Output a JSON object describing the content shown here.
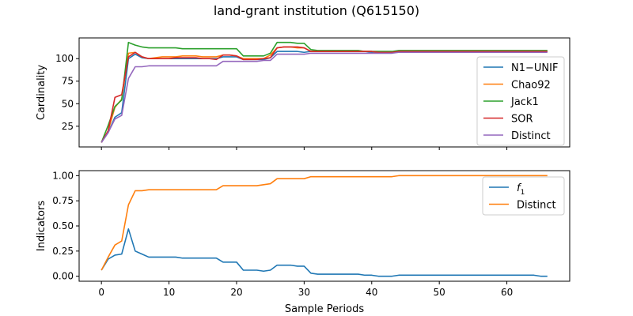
{
  "figure": {
    "title": "land-grant institution (Q615150)"
  },
  "chart_data": [
    {
      "type": "line",
      "ylabel": "Cardinality",
      "xlabel": "",
      "xlim": [
        -3.3,
        69.3
      ],
      "ylim": [
        2,
        123
      ],
      "xticks": [
        0,
        10,
        20,
        30,
        40,
        50,
        60
      ],
      "yticks": [
        25,
        50,
        75,
        100
      ],
      "show_x_ticklabels": false,
      "legend_position": "center right",
      "x": [
        0,
        1,
        2,
        3,
        4,
        5,
        6,
        7,
        8,
        9,
        10,
        11,
        12,
        13,
        14,
        15,
        16,
        17,
        18,
        19,
        20,
        21,
        22,
        23,
        24,
        25,
        26,
        27,
        28,
        29,
        30,
        31,
        32,
        33,
        34,
        35,
        36,
        37,
        38,
        39,
        40,
        41,
        42,
        43,
        44,
        45,
        46,
        47,
        48,
        49,
        50,
        51,
        52,
        53,
        54,
        55,
        56,
        57,
        58,
        59,
        60,
        61,
        62,
        63,
        64,
        65,
        66
      ],
      "series": [
        {
          "name": "N1−UNIF",
          "color": "#1f77b4",
          "values": [
            7,
            18,
            35,
            40,
            100,
            105,
            101,
            100,
            100,
            100,
            100,
            100,
            100,
            100,
            100,
            100,
            100,
            100,
            102,
            102,
            102,
            99,
            99,
            99,
            99,
            101,
            108,
            108,
            108,
            108,
            107,
            108,
            108,
            108,
            108,
            108,
            108,
            108,
            108,
            108,
            107,
            107,
            107,
            107,
            108,
            108,
            108,
            108,
            108,
            108,
            108,
            108,
            108,
            108,
            108,
            108,
            108,
            108,
            108,
            108,
            108,
            108,
            108,
            108,
            108,
            108,
            108
          ]
        },
        {
          "name": "Chao92",
          "color": "#ff7f0e",
          "values": [
            7,
            20,
            46,
            55,
            106,
            107,
            102,
            100,
            101,
            102,
            102,
            102,
            103,
            103,
            103,
            102,
            102,
            102,
            104,
            104,
            103,
            100,
            100,
            100,
            100,
            104,
            112,
            113,
            113,
            112,
            112,
            108,
            108,
            108,
            108,
            108,
            108,
            108,
            108,
            108,
            108,
            107,
            107,
            107,
            108,
            108,
            108,
            108,
            108,
            108,
            108,
            108,
            108,
            108,
            108,
            108,
            108,
            108,
            108,
            108,
            108,
            108,
            108,
            108,
            108,
            108,
            108
          ]
        },
        {
          "name": "Jack1",
          "color": "#2ca02c",
          "values": [
            7,
            26,
            47,
            54,
            118,
            115,
            113,
            112,
            112,
            112,
            112,
            112,
            111,
            111,
            111,
            111,
            111,
            111,
            111,
            111,
            111,
            103,
            103,
            103,
            103,
            106,
            118,
            118,
            118,
            117,
            117,
            110,
            109,
            109,
            109,
            109,
            109,
            109,
            109,
            108,
            108,
            108,
            108,
            108,
            109,
            109,
            109,
            109,
            109,
            109,
            109,
            109,
            109,
            109,
            109,
            109,
            109,
            109,
            109,
            109,
            109,
            109,
            109,
            109,
            109,
            109,
            109
          ]
        },
        {
          "name": "SOR",
          "color": "#d62728",
          "values": [
            7,
            20,
            57,
            60,
            102,
            107,
            102,
            100,
            100,
            100,
            100,
            101,
            101,
            101,
            101,
            100,
            100,
            99,
            104,
            104,
            103,
            99,
            99,
            99,
            100,
            101,
            112,
            113,
            113,
            113,
            112,
            108,
            108,
            108,
            108,
            108,
            108,
            108,
            108,
            108,
            108,
            107,
            107,
            107,
            108,
            108,
            108,
            108,
            108,
            108,
            108,
            108,
            108,
            108,
            108,
            108,
            108,
            108,
            108,
            108,
            108,
            108,
            108,
            108,
            108,
            108,
            108
          ]
        },
        {
          "name": "Distinct",
          "color": "#9467bd",
          "values": [
            7,
            18,
            33,
            37,
            78,
            91,
            91,
            92,
            92,
            92,
            92,
            92,
            92,
            92,
            92,
            92,
            92,
            92,
            97,
            97,
            97,
            97,
            97,
            97,
            98,
            98,
            105,
            105,
            105,
            105,
            105,
            106,
            106,
            106,
            106,
            106,
            106,
            106,
            106,
            106,
            106,
            106,
            106,
            106,
            107,
            107,
            107,
            107,
            107,
            107,
            107,
            107,
            107,
            107,
            107,
            107,
            107,
            107,
            107,
            107,
            107,
            107,
            107,
            107,
            107,
            107,
            107
          ]
        }
      ]
    },
    {
      "type": "line",
      "ylabel": "Indicators",
      "xlabel": "Sample Periods",
      "xlim": [
        -3.3,
        69.3
      ],
      "ylim": [
        -0.05,
        1.05
      ],
      "xticks": [
        0,
        10,
        20,
        30,
        40,
        50,
        60
      ],
      "yticks": [
        0.0,
        0.25,
        0.5,
        0.75,
        1.0
      ],
      "yticklabels": [
        "0.00",
        "0.25",
        "0.50",
        "0.75",
        "1.00"
      ],
      "xticklabels": [
        "0",
        "10",
        "20",
        "30",
        "40",
        "50",
        "60"
      ],
      "show_x_ticklabels": true,
      "legend_position": "upper right",
      "x": [
        0,
        1,
        2,
        3,
        4,
        5,
        6,
        7,
        8,
        9,
        10,
        11,
        12,
        13,
        14,
        15,
        16,
        17,
        18,
        19,
        20,
        21,
        22,
        23,
        24,
        25,
        26,
        27,
        28,
        29,
        30,
        31,
        32,
        33,
        34,
        35,
        36,
        37,
        38,
        39,
        40,
        41,
        42,
        43,
        44,
        45,
        46,
        47,
        48,
        49,
        50,
        51,
        52,
        53,
        54,
        55,
        56,
        57,
        58,
        59,
        60,
        61,
        62,
        63,
        64,
        65,
        66
      ],
      "series": [
        {
          "name": "f₁",
          "label_base": "f",
          "label_sub": "1",
          "color": "#1f77b4",
          "values": [
            0.06,
            0.17,
            0.21,
            0.22,
            0.47,
            0.25,
            0.22,
            0.19,
            0.19,
            0.19,
            0.19,
            0.19,
            0.18,
            0.18,
            0.18,
            0.18,
            0.18,
            0.18,
            0.14,
            0.14,
            0.14,
            0.06,
            0.06,
            0.06,
            0.05,
            0.06,
            0.11,
            0.11,
            0.11,
            0.1,
            0.1,
            0.03,
            0.02,
            0.02,
            0.02,
            0.02,
            0.02,
            0.02,
            0.02,
            0.01,
            0.01,
            0.0,
            0.0,
            0.0,
            0.01,
            0.01,
            0.01,
            0.01,
            0.01,
            0.01,
            0.01,
            0.01,
            0.01,
            0.01,
            0.01,
            0.01,
            0.01,
            0.01,
            0.01,
            0.01,
            0.01,
            0.01,
            0.01,
            0.01,
            0.01,
            0.0,
            0.0
          ]
        },
        {
          "name": "Distinct",
          "color": "#ff7f0e",
          "values": [
            0.06,
            0.19,
            0.31,
            0.35,
            0.71,
            0.85,
            0.85,
            0.86,
            0.86,
            0.86,
            0.86,
            0.86,
            0.86,
            0.86,
            0.86,
            0.86,
            0.86,
            0.86,
            0.9,
            0.9,
            0.9,
            0.9,
            0.9,
            0.9,
            0.91,
            0.92,
            0.97,
            0.97,
            0.97,
            0.97,
            0.97,
            0.99,
            0.99,
            0.99,
            0.99,
            0.99,
            0.99,
            0.99,
            0.99,
            0.99,
            0.99,
            0.99,
            0.99,
            0.99,
            1.0,
            1.0,
            1.0,
            1.0,
            1.0,
            1.0,
            1.0,
            1.0,
            1.0,
            1.0,
            1.0,
            1.0,
            1.0,
            1.0,
            1.0,
            1.0,
            1.0,
            1.0,
            1.0,
            1.0,
            1.0,
            1.0,
            1.0
          ]
        }
      ]
    }
  ]
}
